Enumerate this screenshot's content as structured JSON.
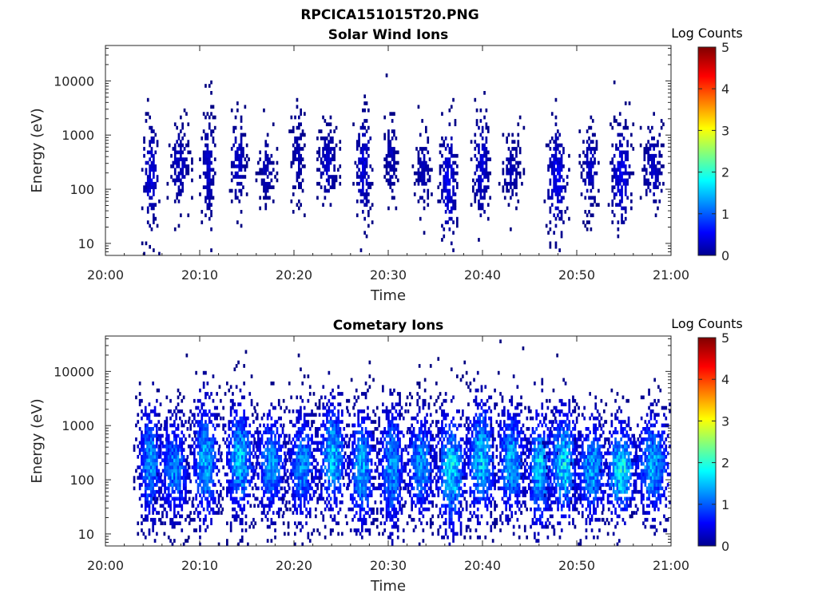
{
  "figure": {
    "suptitle": "RPCICA151015T20.PNG"
  },
  "chart_data": [
    {
      "type": "heatmap",
      "title": "Solar Wind Ions",
      "xlabel": "Time",
      "ylabel": "Energy (eV)",
      "x_ticks": [
        "20:00",
        "20:10",
        "20:20",
        "20:30",
        "20:40",
        "20:50",
        "21:00"
      ],
      "x_range_minutes": [
        0,
        60
      ],
      "y_scale": "log",
      "y_range": [
        6,
        45000
      ],
      "y_ticks": [
        "10",
        "100",
        "1000",
        "10000"
      ],
      "colorbar": {
        "title": "Log Counts",
        "ticks": [
          "0",
          "1",
          "2",
          "3",
          "4",
          "5"
        ],
        "range": [
          0,
          5
        ],
        "colormap": "jet"
      },
      "note_values": "counts mostly 0-0.6 (dark blue), sparse",
      "bursts": [
        {
          "t": 4.7,
          "e": 180,
          "i": 0.5,
          "w": 0.5,
          "spread": 1.2
        },
        {
          "t": 7.8,
          "e": 250,
          "i": 0.4,
          "w": 0.6,
          "spread": 0.9
        },
        {
          "t": 10.8,
          "e": 220,
          "i": 0.4,
          "w": 0.4,
          "spread": 1.3
        },
        {
          "t": 14.0,
          "e": 300,
          "i": 0.4,
          "w": 0.5,
          "spread": 1.0
        },
        {
          "t": 17.0,
          "e": 200,
          "i": 0.3,
          "w": 0.5,
          "spread": 0.8
        },
        {
          "t": 20.3,
          "e": 350,
          "i": 0.3,
          "w": 0.4,
          "spread": 1.1
        },
        {
          "t": 23.5,
          "e": 280,
          "i": 0.4,
          "w": 0.6,
          "spread": 0.9
        },
        {
          "t": 27.3,
          "e": 250,
          "i": 0.5,
          "w": 0.5,
          "spread": 1.2
        },
        {
          "t": 30.2,
          "e": 350,
          "i": 0.3,
          "w": 0.4,
          "spread": 1.0
        },
        {
          "t": 33.6,
          "e": 200,
          "i": 0.3,
          "w": 0.5,
          "spread": 0.9
        },
        {
          "t": 36.3,
          "e": 130,
          "i": 0.6,
          "w": 0.5,
          "spread": 1.3
        },
        {
          "t": 39.8,
          "e": 250,
          "i": 0.5,
          "w": 0.5,
          "spread": 1.2
        },
        {
          "t": 43.0,
          "e": 220,
          "i": 0.3,
          "w": 0.6,
          "spread": 0.8
        },
        {
          "t": 47.8,
          "e": 150,
          "i": 0.6,
          "w": 0.6,
          "spread": 1.2
        },
        {
          "t": 51.3,
          "e": 220,
          "i": 0.4,
          "w": 0.5,
          "spread": 1.0
        },
        {
          "t": 54.6,
          "e": 160,
          "i": 0.6,
          "w": 0.6,
          "spread": 1.2
        },
        {
          "t": 58.0,
          "e": 230,
          "i": 0.4,
          "w": 0.6,
          "spread": 0.9
        }
      ]
    },
    {
      "type": "heatmap",
      "title": "Cometary Ions",
      "xlabel": "Time",
      "ylabel": "Energy (eV)",
      "x_ticks": [
        "20:00",
        "20:10",
        "20:20",
        "20:30",
        "20:40",
        "20:50",
        "21:00"
      ],
      "x_range_minutes": [
        0,
        60
      ],
      "y_scale": "log",
      "y_range": [
        6,
        45000
      ],
      "y_ticks": [
        "10",
        "100",
        "1000",
        "10000"
      ],
      "colorbar": {
        "title": "Log Counts",
        "ticks": [
          "0",
          "1",
          "2",
          "3",
          "4",
          "5"
        ],
        "range": [
          0,
          5
        ],
        "colormap": "jet"
      },
      "note_values": "counts up to ~2 (cyan/light green) in burst cores, dense",
      "bursts": [
        {
          "t": 4.7,
          "e": 200,
          "i": 1.5,
          "w": 0.8,
          "spread": 1.5
        },
        {
          "t": 7.2,
          "e": 150,
          "i": 1.4,
          "w": 1.0,
          "spread": 1.3
        },
        {
          "t": 10.5,
          "e": 200,
          "i": 1.6,
          "w": 0.9,
          "spread": 1.6
        },
        {
          "t": 14.2,
          "e": 220,
          "i": 1.7,
          "w": 1.0,
          "spread": 1.4
        },
        {
          "t": 17.5,
          "e": 180,
          "i": 1.5,
          "w": 1.0,
          "spread": 1.3
        },
        {
          "t": 20.8,
          "e": 170,
          "i": 1.4,
          "w": 1.0,
          "spread": 1.4
        },
        {
          "t": 24.0,
          "e": 260,
          "i": 1.7,
          "w": 1.0,
          "spread": 1.4
        },
        {
          "t": 27.1,
          "e": 150,
          "i": 1.6,
          "w": 0.9,
          "spread": 1.5
        },
        {
          "t": 30.3,
          "e": 160,
          "i": 1.5,
          "w": 0.9,
          "spread": 1.6
        },
        {
          "t": 33.4,
          "e": 180,
          "i": 1.5,
          "w": 1.0,
          "spread": 1.3
        },
        {
          "t": 36.6,
          "e": 140,
          "i": 1.9,
          "w": 1.0,
          "spread": 1.5
        },
        {
          "t": 39.8,
          "e": 230,
          "i": 1.8,
          "w": 1.0,
          "spread": 1.5
        },
        {
          "t": 43.0,
          "e": 200,
          "i": 1.6,
          "w": 1.0,
          "spread": 1.4
        },
        {
          "t": 46.0,
          "e": 150,
          "i": 1.8,
          "w": 0.9,
          "spread": 1.5
        },
        {
          "t": 48.5,
          "e": 180,
          "i": 1.9,
          "w": 1.0,
          "spread": 1.4
        },
        {
          "t": 51.5,
          "e": 150,
          "i": 1.6,
          "w": 1.0,
          "spread": 1.3
        },
        {
          "t": 54.6,
          "e": 140,
          "i": 2.0,
          "w": 1.0,
          "spread": 1.2
        },
        {
          "t": 58.0,
          "e": 180,
          "i": 1.6,
          "w": 1.2,
          "spread": 1.3
        }
      ]
    }
  ]
}
